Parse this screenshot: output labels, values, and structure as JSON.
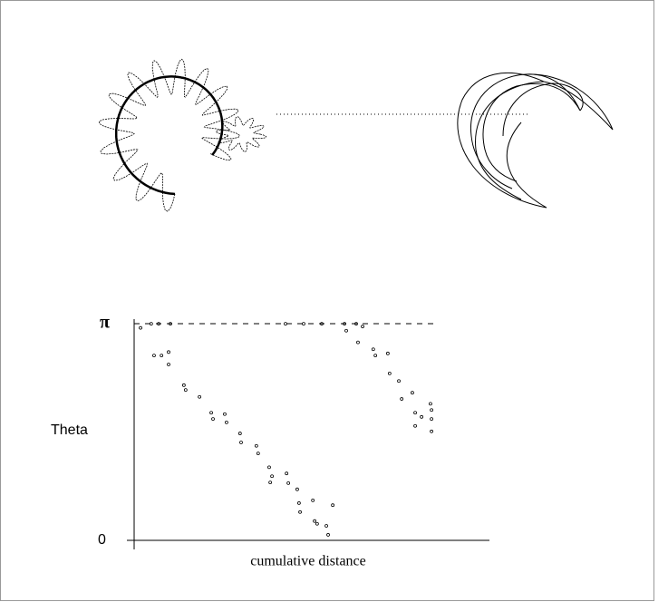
{
  "chart_data": {
    "type": "scatter",
    "ylabel": "Theta",
    "xlabel": "cumulative distance",
    "xlim": [
      0,
      100
    ],
    "ylim": [
      0,
      3.1416
    ],
    "yticks": [
      {
        "value": 3.1416,
        "label": "π"
      },
      0
    ],
    "color": "#000000",
    "x": [
      1.8,
      4.8,
      6.9,
      10.2,
      5.6,
      7.7,
      9.7,
      9.7,
      14.0,
      14.5,
      18.4,
      21.7,
      22.2,
      25.5,
      26.0,
      29.8,
      30.1,
      34.4,
      34.9,
      38.0,
      38.3,
      38.8,
      42.9,
      43.4,
      45.9,
      46.4,
      46.7,
      50.3,
      50.8,
      51.5,
      54.1,
      54.6,
      55.9,
      59.2,
      59.7,
      62.5,
      63.0,
      64.3,
      67.3,
      67.9,
      71.4,
      71.9,
      74.5,
      75.3,
      78.3,
      79.1,
      79.1,
      80.9,
      83.4,
      83.7,
      83.7,
      83.7,
      47.7,
      52.8,
      42.6
    ],
    "values": [
      3.08,
      3.14,
      3.14,
      3.14,
      2.68,
      2.68,
      2.73,
      2.55,
      2.25,
      2.18,
      2.08,
      1.85,
      1.76,
      1.83,
      1.71,
      1.55,
      1.42,
      1.37,
      1.26,
      1.06,
      0.84,
      0.93,
      0.97,
      0.83,
      0.74,
      0.54,
      0.41,
      0.58,
      0.28,
      0.24,
      0.21,
      0.08,
      0.51,
      3.14,
      3.04,
      3.14,
      2.87,
      3.1,
      2.77,
      2.68,
      2.71,
      2.42,
      2.31,
      2.05,
      2.14,
      1.85,
      1.66,
      1.79,
      1.98,
      1.89,
      1.76,
      1.58,
      3.14,
      3.14,
      3.14
    ]
  }
}
